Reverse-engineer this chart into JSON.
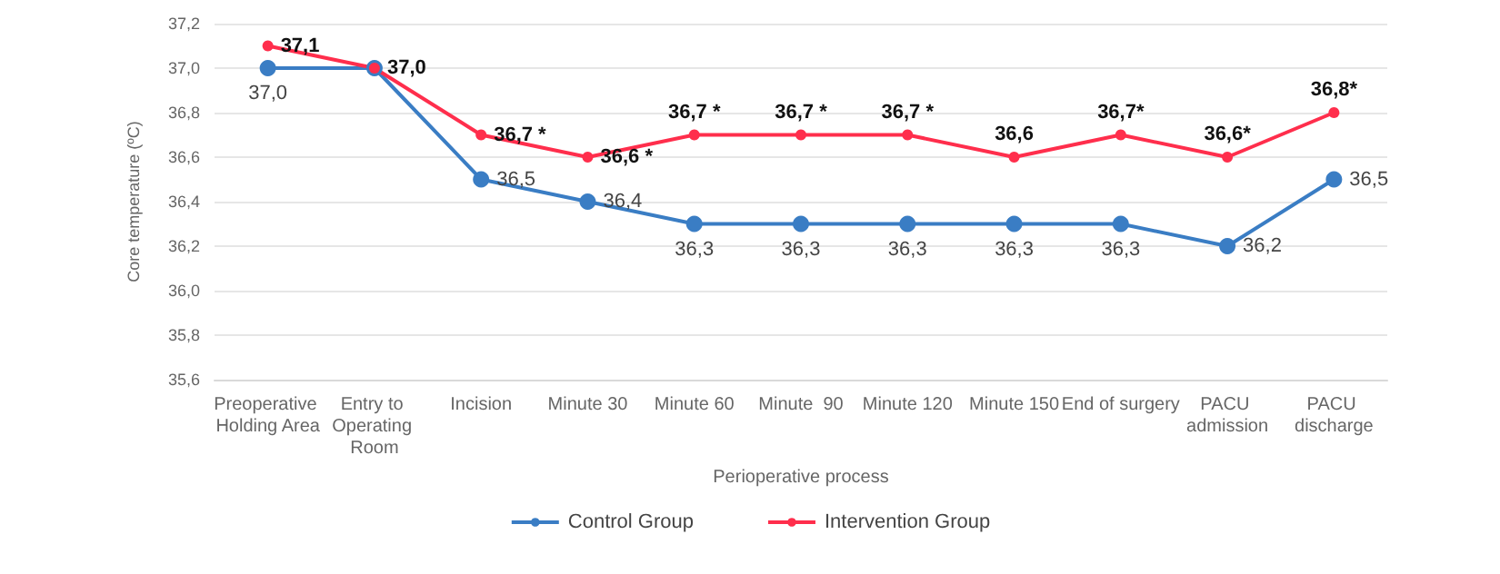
{
  "chart_data": {
    "type": "line",
    "xlabel": "Perioperative process",
    "ylabel": "Core temperature (ºC)",
    "categories": [
      "Preoperative Holding Area",
      "Entry to Operating Room",
      "Incision",
      "Minute 30",
      "Minute 60",
      "Minute  90",
      "Minute 120",
      "Minute 150",
      "End of surgery",
      "PACU admission",
      "PACU discharge"
    ],
    "series": [
      {
        "name": "Control Group",
        "color": "#3a7dc4",
        "values": [
          37.0,
          37.0,
          36.5,
          36.4,
          36.3,
          36.3,
          36.3,
          36.3,
          36.3,
          36.2,
          36.5
        ],
        "value_labels": [
          "37,0",
          null,
          "36,5",
          "36,4",
          "36,3",
          "36,3",
          "36,3",
          "36,3",
          "36,3",
          "36,2",
          "36,5"
        ]
      },
      {
        "name": "Intervention Group",
        "color": "#ff2e4c",
        "values": [
          37.1,
          37.0,
          36.7,
          36.6,
          36.7,
          36.7,
          36.7,
          36.6,
          36.7,
          36.6,
          36.8
        ],
        "value_labels": [
          "37,1",
          "37,0",
          "36,7 *",
          "36,6 *",
          "36,7 *",
          "36,7 *",
          "36,7 *",
          "36,6",
          "36,7*",
          "36,6*",
          "36,8*"
        ]
      }
    ],
    "ylim": [
      35.6,
      37.2
    ],
    "yticks": [
      {
        "value": 35.6,
        "label": "35,6"
      },
      {
        "value": 35.8,
        "label": "35,8"
      },
      {
        "value": 36.0,
        "label": "36,0"
      },
      {
        "value": 36.2,
        "label": "36,2"
      },
      {
        "value": 36.4,
        "label": "36,4"
      },
      {
        "value": 36.6,
        "label": "36,6"
      },
      {
        "value": 36.8,
        "label": "36,8"
      },
      {
        "value": 37.0,
        "label": "37,0"
      },
      {
        "value": 37.2,
        "label": "37,2"
      }
    ],
    "grid": "y",
    "legend": "bottom",
    "marker": "circle",
    "line_style": "solid"
  }
}
